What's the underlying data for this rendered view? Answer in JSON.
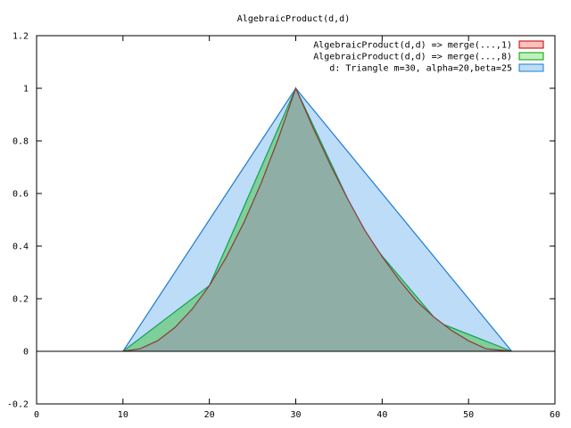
{
  "chart_data": {
    "type": "area",
    "title": "AlgebraicProduct(d,d)",
    "xlabel": "",
    "ylabel": "",
    "xlim": [
      0,
      60
    ],
    "ylim": [
      -0.2,
      1.2
    ],
    "x_ticks": [
      "0",
      "10",
      "20",
      "30",
      "40",
      "50",
      "60"
    ],
    "y_ticks": [
      "-0.2",
      "0",
      "0.2",
      "0.4",
      "0.6",
      "0.8",
      "1",
      "1.2"
    ],
    "grid": false,
    "legend_position": "top-right",
    "zero_line": true,
    "series": [
      {
        "name": "d: Triangle m=30, alpha=20,beta=25",
        "fill": "#bcdcf8",
        "stroke": "#1f7ad0",
        "points": [
          [
            10,
            0
          ],
          [
            30,
            1
          ],
          [
            55,
            0
          ]
        ]
      },
      {
        "name": "AlgebraicProduct(d,d) => merge(...,8)",
        "fill": "#7fcf9a",
        "stroke": "#10a050",
        "points": [
          [
            10,
            0
          ],
          [
            20,
            0.25
          ],
          [
            30,
            1
          ],
          [
            38,
            0.44
          ],
          [
            46.5,
            0.11
          ],
          [
            55,
            0
          ]
        ]
      },
      {
        "name": "AlgebraicProduct(d,d) => merge(...,1)",
        "fill": "#8eaea6",
        "stroke": "#8b3a3a",
        "points": [
          [
            10,
            0
          ],
          [
            12,
            0.01
          ],
          [
            14,
            0.04
          ],
          [
            16,
            0.09
          ],
          [
            18,
            0.16
          ],
          [
            20,
            0.25
          ],
          [
            22,
            0.36
          ],
          [
            24,
            0.49
          ],
          [
            26,
            0.64
          ],
          [
            28,
            0.81
          ],
          [
            30,
            1
          ],
          [
            32,
            0.85
          ],
          [
            34,
            0.71
          ],
          [
            36,
            0.58
          ],
          [
            38,
            0.46
          ],
          [
            40,
            0.36
          ],
          [
            42,
            0.27
          ],
          [
            44,
            0.19
          ],
          [
            46,
            0.13
          ],
          [
            48,
            0.08
          ],
          [
            50,
            0.04
          ],
          [
            52,
            0.01
          ],
          [
            55,
            0
          ]
        ]
      }
    ],
    "legend": [
      {
        "label": "AlgebraicProduct(d,d) => merge(...,1)",
        "fill": "#ffc0c0",
        "stroke": "#c00000"
      },
      {
        "label": "AlgebraicProduct(d,d) => merge(...,8)",
        "fill": "#c0f0c0",
        "stroke": "#00a000"
      },
      {
        "label": "d: Triangle m=30, alpha=20,beta=25",
        "fill": "#bcdcf8",
        "stroke": "#1f7ad0"
      }
    ]
  }
}
